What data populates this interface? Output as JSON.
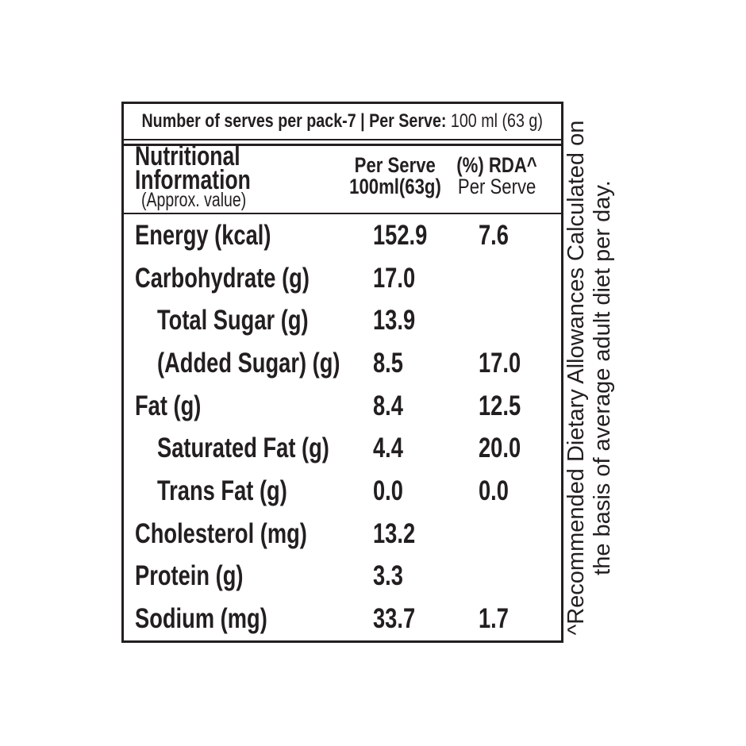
{
  "colors": {
    "text": "#231f20",
    "background": "#ffffff",
    "border": "#231f20"
  },
  "serves_bar": {
    "bold_text": "Number of serves per pack-7 | Per Serve: ",
    "regular_text": "100 ml (63 g)"
  },
  "table_header": {
    "title_line1": "Nutritional",
    "title_line2": "Information",
    "title_note": "(Approx. value)",
    "col_per_serve_line1": "Per Serve",
    "col_per_serve_line2": "100ml(63g)",
    "col_rda_line1": "(%) RDA^",
    "col_rda_line2": "Per Serve"
  },
  "rows": [
    {
      "label": "Energy (kcal)",
      "indent": false,
      "per_serve": "152.9",
      "rda": "7.6"
    },
    {
      "label": "Carbohydrate (g)",
      "indent": false,
      "per_serve": "17.0",
      "rda": ""
    },
    {
      "label": "Total Sugar (g)",
      "indent": true,
      "per_serve": "13.9",
      "rda": ""
    },
    {
      "label": "(Added Sugar) (g)",
      "indent": true,
      "per_serve": "8.5",
      "rda": "17.0"
    },
    {
      "label": "Fat (g)",
      "indent": false,
      "per_serve": "8.4",
      "rda": "12.5"
    },
    {
      "label": "Saturated Fat (g)",
      "indent": true,
      "per_serve": "4.4",
      "rda": "20.0"
    },
    {
      "label": "Trans Fat (g)",
      "indent": true,
      "per_serve": "0.0",
      "rda": "0.0"
    },
    {
      "label": "Cholesterol (mg)",
      "indent": false,
      "per_serve": "13.2",
      "rda": ""
    },
    {
      "label": "Protein (g)",
      "indent": false,
      "per_serve": "3.3",
      "rda": ""
    },
    {
      "label": "Sodium (mg)",
      "indent": false,
      "per_serve": "33.7",
      "rda": "1.7"
    }
  ],
  "footnote": {
    "line1": "^Recommended Dietary Allowances Calculated on",
    "line2": "the basis of average adult diet per day."
  }
}
